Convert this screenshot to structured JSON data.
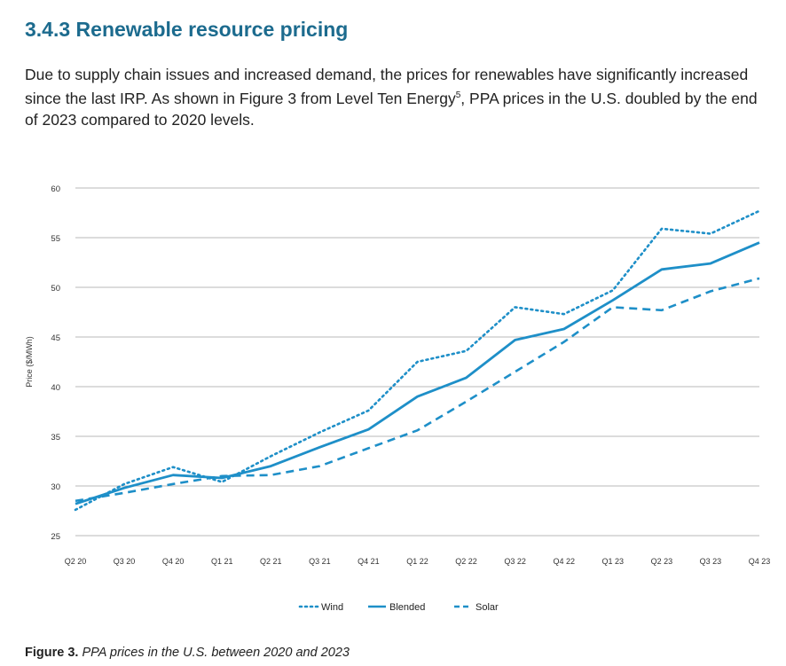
{
  "section": {
    "title": "3.4.3 Renewable resource pricing",
    "intro_before": "Due to supply chain issues and increased demand, the prices for renewables have significantly increased since the last IRP. As shown in Figure 3 from Level Ten Energy",
    "footnote": "5",
    "intro_after": ", PPA prices in the U.S. doubled by the end of 2023 compared to 2020 levels."
  },
  "caption": {
    "label": "Figure 3.",
    "text": "PPA prices in the U.S. between 2020 and 2023"
  },
  "colors": {
    "line": "#1e8fc8",
    "grid": "#b9b9b9",
    "text": "#333333"
  },
  "chart_data": {
    "type": "line",
    "title": "",
    "xlabel": "",
    "ylabel": "Price ($/MWh)",
    "categories": [
      "Q2 20",
      "Q3 20",
      "Q4 20",
      "Q1 21",
      "Q2 21",
      "Q3 21",
      "Q4 21",
      "Q1 22",
      "Q2 22",
      "Q3 22",
      "Q4 22",
      "Q1 23",
      "Q2 23",
      "Q3 23",
      "Q4 23"
    ],
    "ylim": [
      25,
      60
    ],
    "yticks": [
      25,
      30,
      35,
      40,
      45,
      50,
      55,
      60
    ],
    "grid": true,
    "legend": "bottom-center",
    "series": [
      {
        "name": "Wind",
        "style": "dotted",
        "values": [
          27.6,
          30.2,
          31.9,
          30.4,
          33.0,
          35.4,
          37.6,
          42.5,
          43.6,
          48.0,
          47.3,
          49.7,
          55.9,
          55.4,
          57.7
        ]
      },
      {
        "name": "Blended",
        "style": "solid",
        "values": [
          28.2,
          29.8,
          31.1,
          30.8,
          32.0,
          33.9,
          35.7,
          39.0,
          40.9,
          44.7,
          45.8,
          48.7,
          51.8,
          52.4,
          54.5
        ]
      },
      {
        "name": "Solar",
        "style": "dashed",
        "values": [
          28.5,
          29.3,
          30.2,
          31.0,
          31.1,
          32.0,
          33.8,
          35.6,
          38.5,
          41.5,
          44.5,
          48.0,
          47.7,
          49.6,
          50.9
        ]
      }
    ]
  }
}
